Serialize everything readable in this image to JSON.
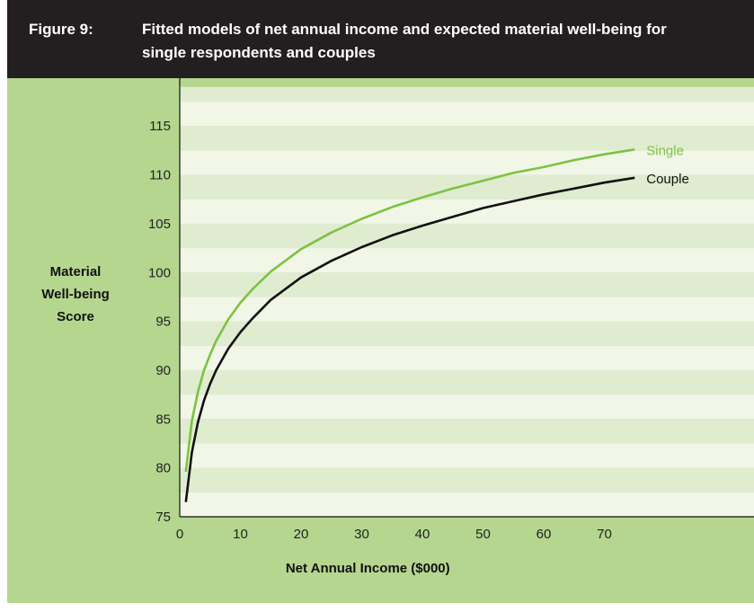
{
  "header": {
    "figure_label": "Figure 9:",
    "title": "Fitted models of net annual income and expected material well-being for single respondents and couples"
  },
  "colors": {
    "background": "#b5d68e",
    "header_bg": "#231f20",
    "band_light": "#f1f6e7",
    "band_dark": "#e0ecd0",
    "single": "#7dc242",
    "couple": "#111111"
  },
  "chart_data": {
    "type": "line",
    "title": "Fitted models of net annual income and expected material well-being for single respondents and couples",
    "xlabel": "Net Annual Income ($000)",
    "ylabel": "Material Well-being Score",
    "ylabel_lines": [
      "Material",
      "Well-being",
      "Score"
    ],
    "xlim": [
      0,
      100
    ],
    "ylim": [
      75,
      119
    ],
    "x_ticks": [
      0,
      10,
      20,
      30,
      40,
      50,
      60,
      70
    ],
    "y_ticks": [
      75,
      80,
      85,
      90,
      95,
      100,
      105,
      110,
      115
    ],
    "grid": "alternating horizontal bands",
    "series": [
      {
        "name": "Single",
        "x": [
          1,
          2,
          3,
          4,
          5,
          6,
          8,
          10,
          12,
          15,
          20,
          25,
          30,
          35,
          40,
          45,
          50,
          55,
          60,
          65,
          70,
          75
        ],
        "values": [
          79.6,
          84.8,
          87.8,
          90.0,
          91.6,
          93.0,
          95.2,
          96.9,
          98.3,
          100.1,
          102.4,
          104.1,
          105.5,
          106.7,
          107.7,
          108.6,
          109.4,
          110.2,
          110.8,
          111.5,
          112.1,
          112.6
        ]
      },
      {
        "name": "Couple",
        "x": [
          1,
          2,
          3,
          4,
          5,
          6,
          8,
          10,
          12,
          15,
          20,
          25,
          30,
          35,
          40,
          45,
          50,
          55,
          60,
          65,
          70,
          75
        ],
        "values": [
          76.5,
          81.6,
          84.7,
          86.9,
          88.6,
          90.0,
          92.2,
          93.9,
          95.3,
          97.2,
          99.5,
          101.2,
          102.6,
          103.8,
          104.8,
          105.7,
          106.6,
          107.3,
          108.0,
          108.6,
          109.2,
          109.7
        ]
      }
    ]
  }
}
